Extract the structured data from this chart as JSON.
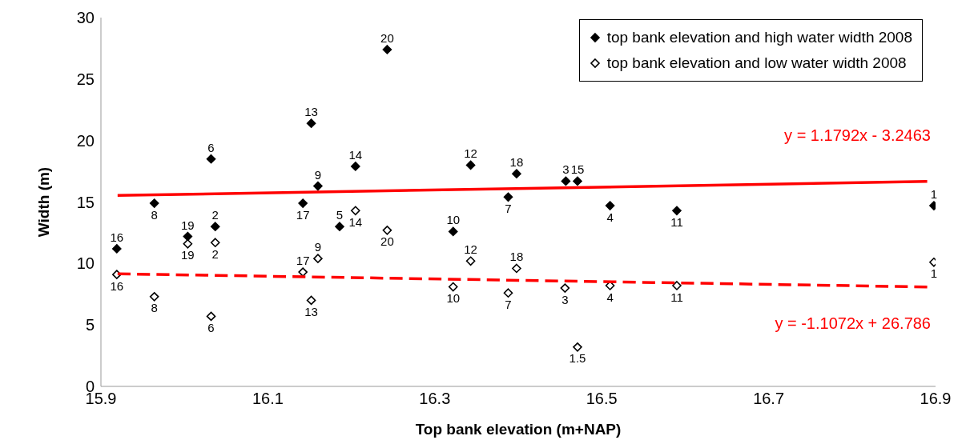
{
  "chart_data": {
    "type": "scatter",
    "xlabel": "Top bank elevation (m+NAP)",
    "ylabel": "Width (m)",
    "xlim": [
      15.9,
      16.9
    ],
    "xticks": [
      15.9,
      16.1,
      16.3,
      16.5,
      16.7,
      16.9
    ],
    "ylim": [
      0,
      30
    ],
    "yticks": [
      0,
      5,
      10,
      15,
      20,
      25,
      30
    ],
    "grid": false,
    "legend": "top right",
    "marker": "diamond",
    "series": [
      {
        "name": "top bank elevation and high water width 2008",
        "color": "#000000",
        "x": [
          15.919,
          15.964,
          16.004,
          16.032,
          16.037,
          16.142,
          16.152,
          16.16,
          16.186,
          16.205,
          16.243,
          16.343,
          16.322,
          16.388,
          16.398,
          16.457,
          16.471,
          16.51,
          16.59,
          16.898
        ],
        "values": [
          11.2,
          14.9,
          12.2,
          18.5,
          13.0,
          14.9,
          21.4,
          16.3,
          13.0,
          17.9,
          27.4,
          18.0,
          12.6,
          15.4,
          17.3,
          16.7,
          16.7,
          14.7,
          14.3,
          14.7
        ]
      },
      {
        "name": "top bank elevation and low water width 2008",
        "color": "#000000",
        "x": [
          15.919,
          15.964,
          16.004,
          16.037,
          16.032,
          16.142,
          16.152,
          16.16,
          16.205,
          16.243,
          16.343,
          16.322,
          16.398,
          16.388,
          16.456,
          16.51,
          16.59,
          16.471,
          16.898
        ],
        "values": [
          9.1,
          7.3,
          11.6,
          11.7,
          5.7,
          9.3,
          7.0,
          10.4,
          14.3,
          12.7,
          10.2,
          8.1,
          9.6,
          7.6,
          8.0,
          8.2,
          8.2,
          3.2,
          10.1
        ]
      },
      {
        "type": "line",
        "color": "#ff0000",
        "line_style": "solid",
        "marker": "none",
        "x": [
          15.92,
          16.89
        ],
        "values": [
          15.53,
          16.67
        ]
      },
      {
        "type": "line",
        "color": "#ff0000",
        "line_style": "dashed",
        "marker": "none",
        "x": [
          15.92,
          16.89
        ],
        "values": [
          9.16,
          8.09
        ]
      }
    ],
    "annotations": [
      "y = 1.1792x - 3.2463",
      "y = -1.1072x + 26.786",
      {
        "text": "16",
        "x": 15.919,
        "y": 11.2
      },
      {
        "text": "8",
        "x": 15.964,
        "y": 14.9
      },
      {
        "text": "19",
        "x": 16.004,
        "y": 12.2
      },
      {
        "text": "6",
        "x": 16.032,
        "y": 18.5
      },
      {
        "text": "2",
        "x": 16.037,
        "y": 13.0
      },
      {
        "text": "17",
        "x": 16.142,
        "y": 14.9
      },
      {
        "text": "13",
        "x": 16.152,
        "y": 21.4
      },
      {
        "text": "9",
        "x": 16.16,
        "y": 16.3
      },
      {
        "text": "5",
        "x": 16.186,
        "y": 13.0
      },
      {
        "text": "14",
        "x": 16.205,
        "y": 17.9
      },
      {
        "text": "20",
        "x": 16.243,
        "y": 27.4
      },
      {
        "text": "12",
        "x": 16.343,
        "y": 18.0
      },
      {
        "text": "10",
        "x": 16.322,
        "y": 12.6
      },
      {
        "text": "7",
        "x": 16.388,
        "y": 15.4
      },
      {
        "text": "18",
        "x": 16.398,
        "y": 17.3
      },
      {
        "text": "3",
        "x": 16.457,
        "y": 16.7
      },
      {
        "text": "15",
        "x": 16.471,
        "y": 16.7
      },
      {
        "text": "4",
        "x": 16.51,
        "y": 14.7
      },
      {
        "text": "11",
        "x": 16.59,
        "y": 14.3
      },
      {
        "text": "1",
        "x": 16.898,
        "y": 14.7
      },
      {
        "text": "16",
        "x": 15.919,
        "y": 9.1
      },
      {
        "text": "8",
        "x": 15.964,
        "y": 7.3
      },
      {
        "text": "19",
        "x": 16.004,
        "y": 11.6
      },
      {
        "text": "2",
        "x": 16.037,
        "y": 11.7
      },
      {
        "text": "6",
        "x": 16.032,
        "y": 5.7
      },
      {
        "text": "17",
        "x": 16.142,
        "y": 9.3
      },
      {
        "text": "13",
        "x": 16.152,
        "y": 7.0
      },
      {
        "text": "9",
        "x": 16.16,
        "y": 10.4
      },
      {
        "text": "14",
        "x": 16.205,
        "y": 14.3
      },
      {
        "text": "20",
        "x": 16.243,
        "y": 12.7
      },
      {
        "text": "12",
        "x": 16.343,
        "y": 10.2
      },
      {
        "text": "10",
        "x": 16.322,
        "y": 8.1
      },
      {
        "text": "18",
        "x": 16.398,
        "y": 9.6
      },
      {
        "text": "7",
        "x": 16.388,
        "y": 7.6
      },
      {
        "text": "3",
        "x": 16.456,
        "y": 8.0
      },
      {
        "text": "4",
        "x": 16.51,
        "y": 8.2
      },
      {
        "text": "11",
        "x": 16.59,
        "y": 8.2
      },
      {
        "text": "1.5",
        "x": 16.471,
        "y": 3.2
      },
      {
        "text": "1",
        "x": 16.898,
        "y": 10.1
      }
    ]
  }
}
